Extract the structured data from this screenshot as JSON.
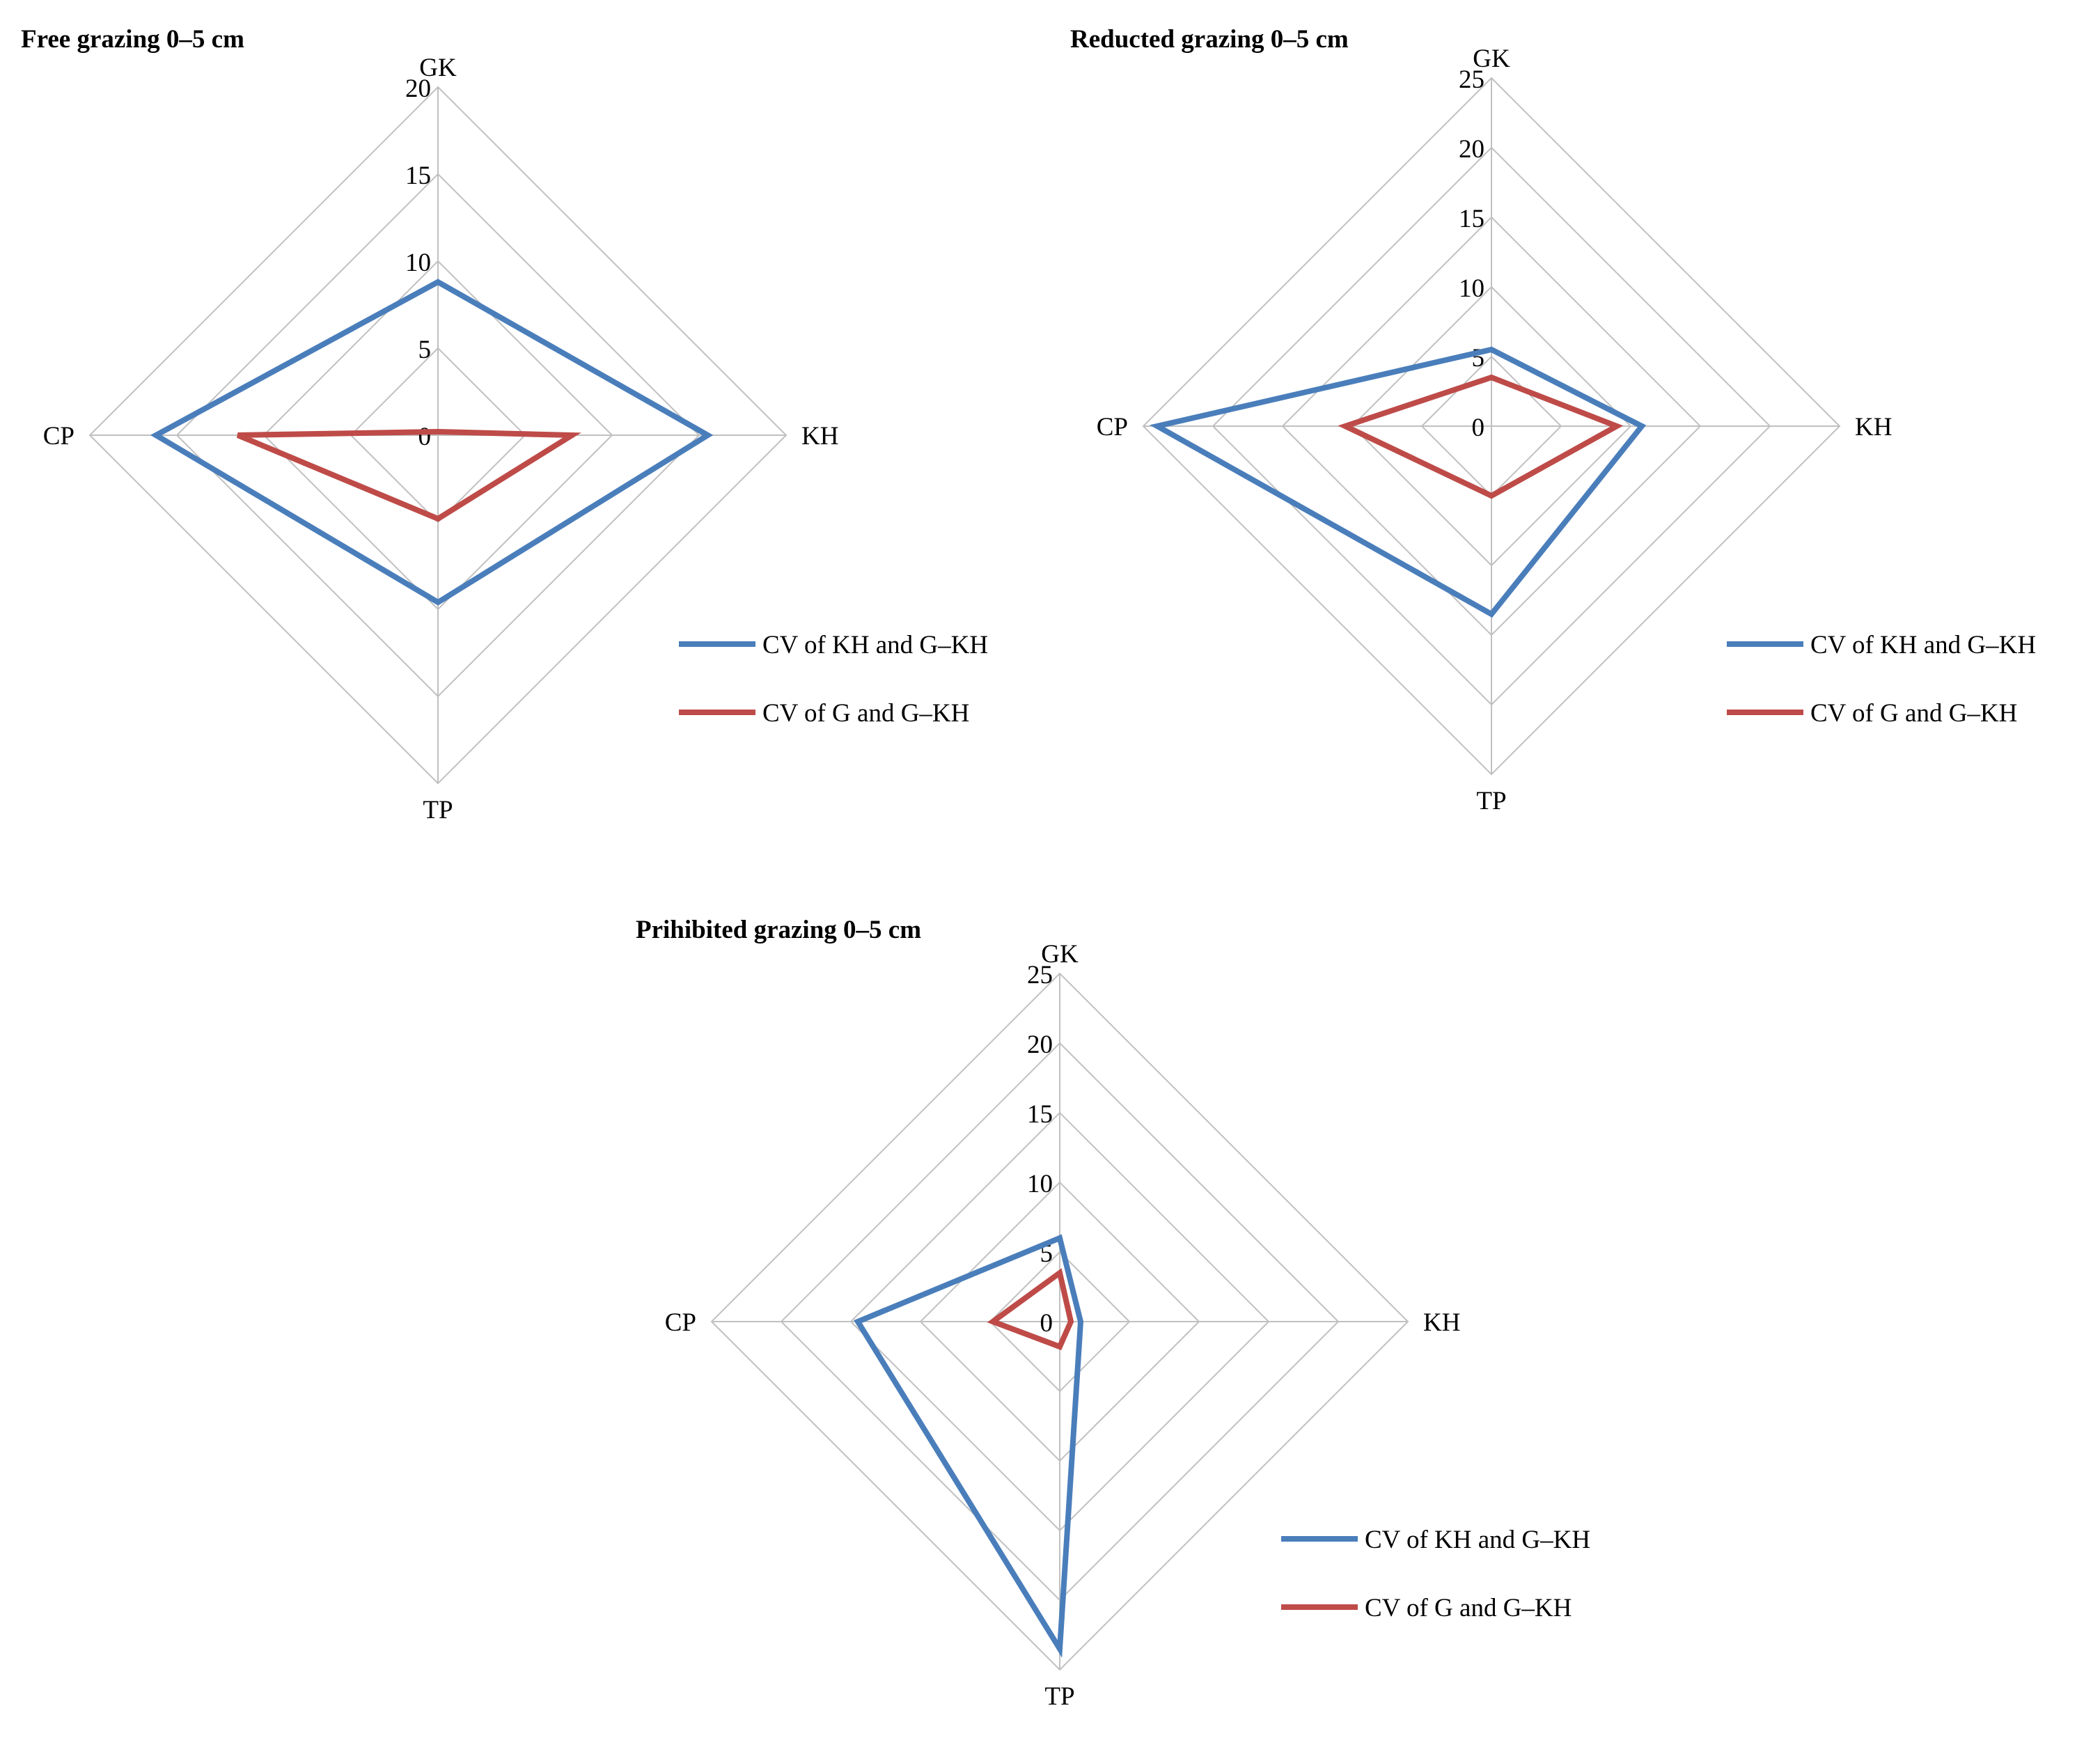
{
  "colors": {
    "series_blue": "#4a7ebb",
    "series_red": "#be4b48",
    "grid": "#c0c0c0",
    "text": "#000000"
  },
  "chart_data": [
    {
      "type": "radar",
      "title": "Free grazing  0–5 cm",
      "axes": [
        "GK",
        "KH",
        "TP",
        "CP"
      ],
      "ticks": [
        "0",
        "5",
        "10",
        "15",
        "20"
      ],
      "rmax": 20,
      "grid": true,
      "legend_position": "bottom-right",
      "series": [
        {
          "name": "CV of KH and G–KH",
          "color": "#4a7ebb",
          "values": [
            8.8,
            15.5,
            9.6,
            16.2
          ]
        },
        {
          "name": "CV of G and G–KH",
          "color": "#be4b48",
          "values": [
            0.2,
            7.7,
            4.8,
            11.5
          ]
        }
      ]
    },
    {
      "type": "radar",
      "title": "Reducted grazing  0–5 cm",
      "axes": [
        "GK",
        "KH",
        "TP",
        "CP"
      ],
      "ticks": [
        "0",
        "5",
        "10",
        "15",
        "20",
        "25"
      ],
      "rmax": 25,
      "grid": true,
      "legend_position": "bottom-right",
      "series": [
        {
          "name": "CV of KH and G–KH",
          "color": "#4a7ebb",
          "values": [
            5.5,
            10.8,
            13.5,
            24.0
          ]
        },
        {
          "name": "CV of G and G–KH",
          "color": "#be4b48",
          "values": [
            3.5,
            9.0,
            5.0,
            10.5
          ]
        }
      ]
    },
    {
      "type": "radar",
      "title": "Prihibited grazing  0–5 cm",
      "axes": [
        "GK",
        "KH",
        "TP",
        "CP"
      ],
      "ticks": [
        "0",
        "5",
        "10",
        "15",
        "20",
        "25"
      ],
      "rmax": 25,
      "grid": true,
      "legend_position": "bottom-right",
      "series": [
        {
          "name": "CV of KH and G–KH",
          "color": "#4a7ebb",
          "values": [
            6.0,
            1.5,
            23.5,
            14.5
          ]
        },
        {
          "name": "CV of G and G–KH",
          "color": "#be4b48",
          "values": [
            3.5,
            0.8,
            1.8,
            4.8
          ]
        }
      ]
    }
  ]
}
